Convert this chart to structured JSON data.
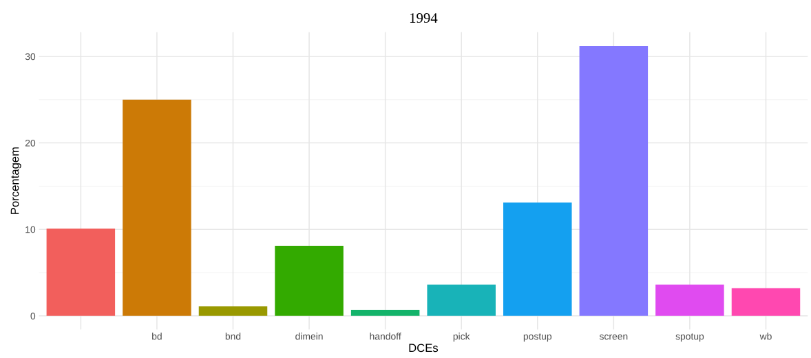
{
  "chart_data": {
    "type": "bar",
    "title": "1994",
    "xlabel": "DCEs",
    "ylabel": "Porcentagem",
    "categories": [
      null,
      "bd",
      "bnd",
      "dimein",
      "handoff",
      "pick",
      "postup",
      "screen",
      "spotup",
      "wb"
    ],
    "values": [
      10.1,
      25.0,
      1.1,
      8.1,
      0.7,
      3.6,
      13.1,
      31.2,
      3.6,
      3.2
    ],
    "colors": [
      "#f25f5c",
      "#cc7a06",
      "#999900",
      "#33aa00",
      "#13b36a",
      "#18b3b8",
      "#14a0f0",
      "#8478ff",
      "#e04bf0",
      "#ff48b0"
    ],
    "ylim": [
      -1.56,
      32.8
    ],
    "yticks": [
      0,
      10,
      20,
      30
    ],
    "grid": true
  }
}
